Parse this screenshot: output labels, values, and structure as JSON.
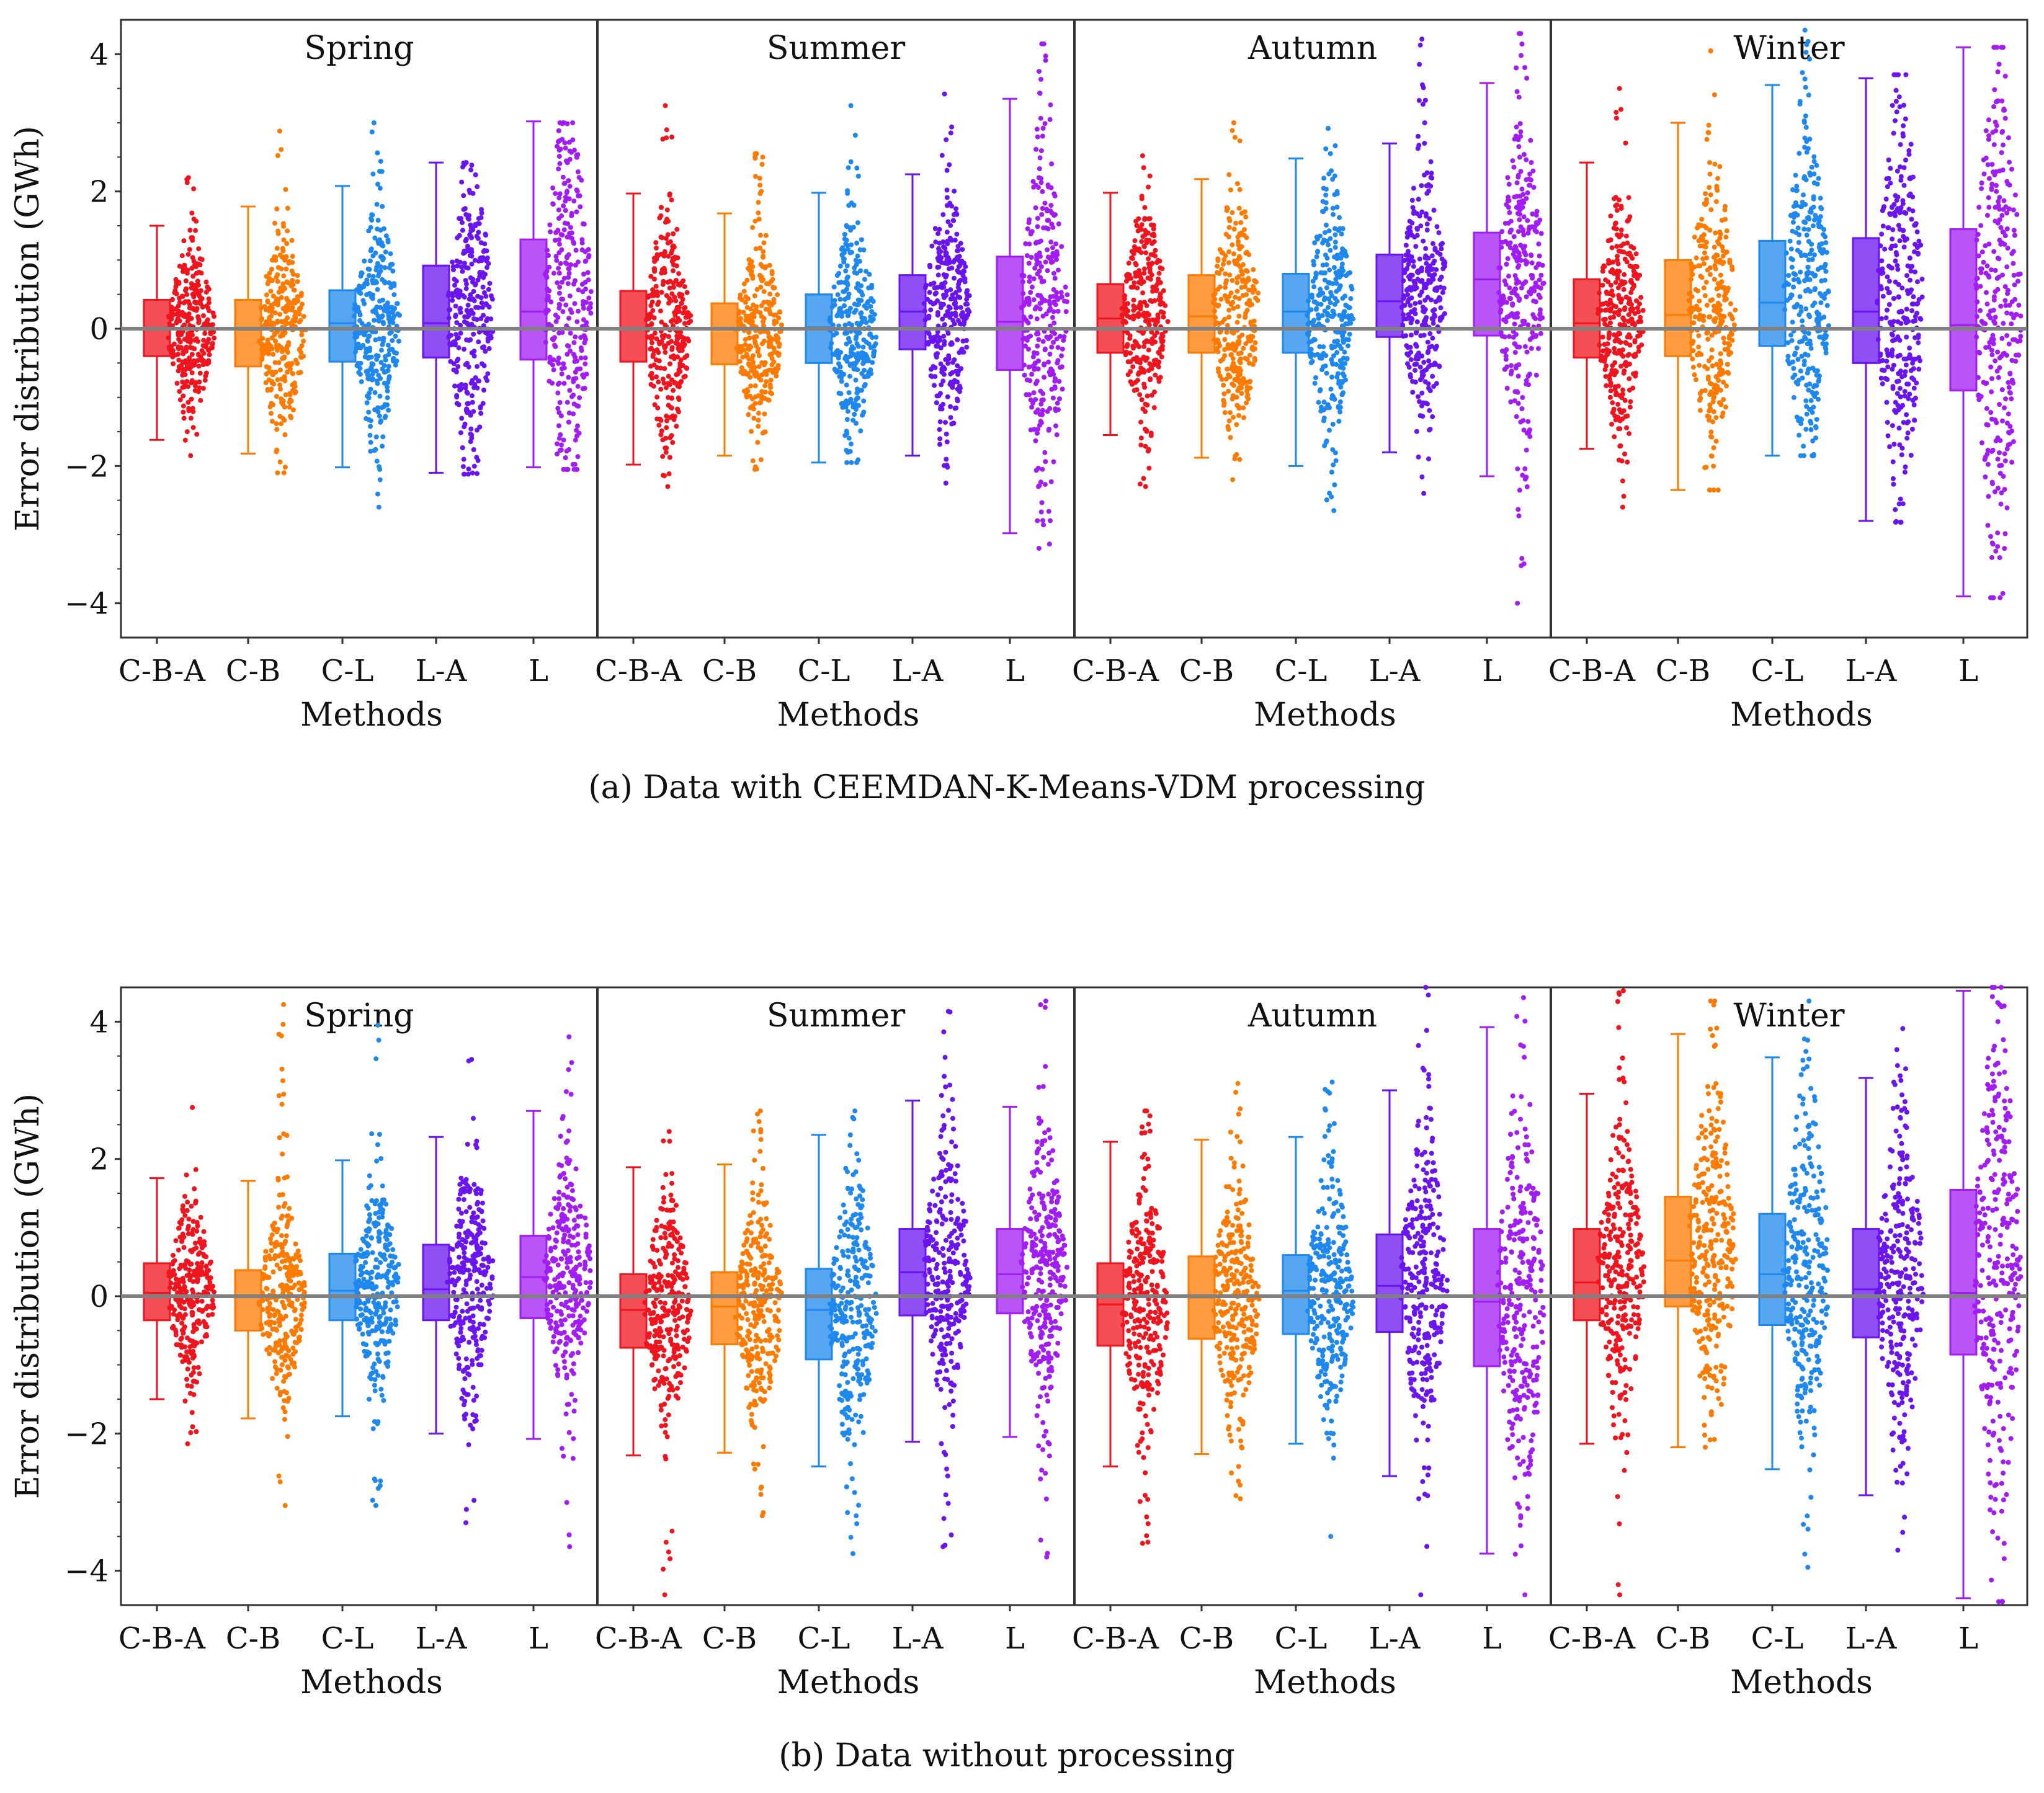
{
  "figure": {
    "caption_a": "(a) Data with CEEMDAN-K-Means-VDM  processing",
    "caption_b": "(b) Data without  processing"
  },
  "colors": {
    "C-B-A": "#f0141e",
    "C-B": "#ff7a00",
    "C-L": "#1e88ee",
    "L-A": "#6a14f0",
    "L": "#a21cf4",
    "frame": "#333333",
    "zero_line": "#808080"
  },
  "chart_data": [
    {
      "type": "boxplot",
      "id": "a",
      "ylabel": "Error distribution (GWh)",
      "xlabel": "Methods",
      "ylim": [
        -4.5,
        4.5
      ],
      "yticks": [
        -4,
        -2,
        0,
        2,
        4
      ],
      "methods": [
        "C-B-A",
        "C-B",
        "C-L",
        "L-A",
        "L"
      ],
      "reference_line": 0,
      "seasons": [
        {
          "name": "Spring",
          "boxes": [
            {
              "method": "C-B-A",
              "whisker_low": -1.62,
              "q1": -0.4,
              "median": 0.0,
              "q3": 0.42,
              "whisker_high": 1.5,
              "points_min": -1.85,
              "points_max": 2.2
            },
            {
              "method": "C-B",
              "whisker_low": -1.82,
              "q1": -0.55,
              "median": -0.02,
              "q3": 0.42,
              "whisker_high": 1.78,
              "points_min": -2.1,
              "points_max": 2.88
            },
            {
              "method": "C-L",
              "whisker_low": -2.02,
              "q1": -0.48,
              "median": 0.08,
              "q3": 0.56,
              "whisker_high": 2.08,
              "points_min": -2.6,
              "points_max": 3.0
            },
            {
              "method": "L-A",
              "whisker_low": -2.1,
              "q1": -0.42,
              "median": 0.08,
              "q3": 0.92,
              "whisker_high": 2.42,
              "points_min": -2.12,
              "points_max": 2.42
            },
            {
              "method": "L",
              "whisker_low": -2.02,
              "q1": -0.45,
              "median": 0.25,
              "q3": 1.3,
              "whisker_high": 3.02,
              "points_min": -2.05,
              "points_max": 3.0
            }
          ]
        },
        {
          "name": "Summer",
          "boxes": [
            {
              "method": "C-B-A",
              "whisker_low": -1.98,
              "q1": -0.48,
              "median": 0.0,
              "q3": 0.55,
              "whisker_high": 1.97,
              "points_min": -2.3,
              "points_max": 3.25
            },
            {
              "method": "C-B",
              "whisker_low": -1.85,
              "q1": -0.52,
              "median": 0.0,
              "q3": 0.37,
              "whisker_high": 1.68,
              "points_min": -2.05,
              "points_max": 2.55
            },
            {
              "method": "C-L",
              "whisker_low": -1.95,
              "q1": -0.5,
              "median": 0.02,
              "q3": 0.5,
              "whisker_high": 1.98,
              "points_min": -1.95,
              "points_max": 3.25
            },
            {
              "method": "L-A",
              "whisker_low": -1.85,
              "q1": -0.3,
              "median": 0.25,
              "q3": 0.78,
              "whisker_high": 2.25,
              "points_min": -2.25,
              "points_max": 3.42
            },
            {
              "method": "L",
              "whisker_low": -2.98,
              "q1": -0.6,
              "median": 0.1,
              "q3": 1.05,
              "whisker_high": 3.35,
              "points_min": -3.2,
              "points_max": 4.15
            }
          ]
        },
        {
          "name": "Autumn",
          "boxes": [
            {
              "method": "C-B-A",
              "whisker_low": -1.55,
              "q1": -0.35,
              "median": 0.15,
              "q3": 0.65,
              "whisker_high": 1.98,
              "points_min": -2.3,
              "points_max": 2.52
            },
            {
              "method": "C-B",
              "whisker_low": -1.88,
              "q1": -0.35,
              "median": 0.18,
              "q3": 0.78,
              "whisker_high": 2.18,
              "points_min": -2.2,
              "points_max": 3.0
            },
            {
              "method": "C-L",
              "whisker_low": -2.0,
              "q1": -0.35,
              "median": 0.25,
              "q3": 0.8,
              "whisker_high": 2.48,
              "points_min": -2.65,
              "points_max": 2.92
            },
            {
              "method": "L-A",
              "whisker_low": -1.8,
              "q1": -0.12,
              "median": 0.4,
              "q3": 1.08,
              "whisker_high": 2.7,
              "points_min": -2.4,
              "points_max": 4.22
            },
            {
              "method": "L",
              "whisker_low": -2.15,
              "q1": -0.1,
              "median": 0.72,
              "q3": 1.4,
              "whisker_high": 3.58,
              "points_min": -4.0,
              "points_max": 4.3
            }
          ]
        },
        {
          "name": "Winter",
          "boxes": [
            {
              "method": "C-B-A",
              "whisker_low": -1.75,
              "q1": -0.42,
              "median": 0.08,
              "q3": 0.72,
              "whisker_high": 2.42,
              "points_min": -2.6,
              "points_max": 3.5
            },
            {
              "method": "C-B",
              "whisker_low": -2.35,
              "q1": -0.4,
              "median": 0.2,
              "q3": 1.0,
              "whisker_high": 3.0,
              "points_min": -2.35,
              "points_max": 4.05
            },
            {
              "method": "C-L",
              "whisker_low": -1.85,
              "q1": -0.25,
              "median": 0.38,
              "q3": 1.28,
              "whisker_high": 3.55,
              "points_min": -1.85,
              "points_max": 4.35
            },
            {
              "method": "L-A",
              "whisker_low": -2.8,
              "q1": -0.5,
              "median": 0.25,
              "q3": 1.32,
              "whisker_high": 3.65,
              "points_min": -2.82,
              "points_max": 3.7
            },
            {
              "method": "L",
              "whisker_low": -3.9,
              "q1": -0.9,
              "median": 0.05,
              "q3": 1.45,
              "whisker_high": 4.1,
              "points_min": -3.92,
              "points_max": 4.1
            }
          ]
        }
      ]
    },
    {
      "type": "boxplot",
      "id": "b",
      "ylabel": "Error distribution (GWh)",
      "xlabel": "Methods",
      "ylim": [
        -4.5,
        4.5
      ],
      "yticks": [
        -4,
        -2,
        0,
        2,
        4
      ],
      "methods": [
        "C-B-A",
        "C-B",
        "C-L",
        "L-A",
        "L"
      ],
      "reference_line": 0,
      "seasons": [
        {
          "name": "Spring",
          "boxes": [
            {
              "method": "C-B-A",
              "whisker_low": -1.5,
              "q1": -0.35,
              "median": 0.05,
              "q3": 0.48,
              "whisker_high": 1.72,
              "points_min": -2.15,
              "points_max": 2.75
            },
            {
              "method": "C-B",
              "whisker_low": -1.78,
              "q1": -0.5,
              "median": 0.0,
              "q3": 0.38,
              "whisker_high": 1.68,
              "points_min": -3.05,
              "points_max": 4.25
            },
            {
              "method": "C-L",
              "whisker_low": -1.75,
              "q1": -0.35,
              "median": 0.08,
              "q3": 0.62,
              "whisker_high": 1.98,
              "points_min": -3.05,
              "points_max": 3.95
            },
            {
              "method": "L-A",
              "whisker_low": -2.0,
              "q1": -0.35,
              "median": 0.1,
              "q3": 0.75,
              "whisker_high": 2.32,
              "points_min": -3.3,
              "points_max": 3.45
            },
            {
              "method": "L",
              "whisker_low": -2.08,
              "q1": -0.32,
              "median": 0.28,
              "q3": 0.88,
              "whisker_high": 2.7,
              "points_min": -3.65,
              "points_max": 3.78
            }
          ]
        },
        {
          "name": "Summer",
          "boxes": [
            {
              "method": "C-B-A",
              "whisker_low": -2.32,
              "q1": -0.75,
              "median": -0.2,
              "q3": 0.32,
              "whisker_high": 1.88,
              "points_min": -4.35,
              "points_max": 2.4
            },
            {
              "method": "C-B",
              "whisker_low": -2.28,
              "q1": -0.7,
              "median": -0.15,
              "q3": 0.35,
              "whisker_high": 1.92,
              "points_min": -3.2,
              "points_max": 2.7
            },
            {
              "method": "C-L",
              "whisker_low": -2.48,
              "q1": -0.92,
              "median": -0.2,
              "q3": 0.4,
              "whisker_high": 2.35,
              "points_min": -3.75,
              "points_max": 2.7
            },
            {
              "method": "L-A",
              "whisker_low": -2.12,
              "q1": -0.28,
              "median": 0.35,
              "q3": 0.98,
              "whisker_high": 2.85,
              "points_min": -3.65,
              "points_max": 4.15
            },
            {
              "method": "L",
              "whisker_low": -2.05,
              "q1": -0.25,
              "median": 0.32,
              "q3": 0.98,
              "whisker_high": 2.76,
              "points_min": -3.8,
              "points_max": 4.3
            }
          ]
        },
        {
          "name": "Autumn",
          "boxes": [
            {
              "method": "C-B-A",
              "whisker_low": -2.48,
              "q1": -0.72,
              "median": -0.12,
              "q3": 0.48,
              "whisker_high": 2.25,
              "points_min": -3.6,
              "points_max": 2.7
            },
            {
              "method": "C-B",
              "whisker_low": -2.3,
              "q1": -0.62,
              "median": -0.02,
              "q3": 0.58,
              "whisker_high": 2.28,
              "points_min": -2.95,
              "points_max": 3.1
            },
            {
              "method": "C-L",
              "whisker_low": -2.15,
              "q1": -0.55,
              "median": 0.08,
              "q3": 0.6,
              "whisker_high": 2.32,
              "points_min": -3.5,
              "points_max": 3.12
            },
            {
              "method": "L-A",
              "whisker_low": -2.62,
              "q1": -0.52,
              "median": 0.15,
              "q3": 0.9,
              "whisker_high": 3.0,
              "points_min": -4.35,
              "points_max": 4.5
            },
            {
              "method": "L",
              "whisker_low": -3.75,
              "q1": -1.02,
              "median": -0.08,
              "q3": 0.98,
              "whisker_high": 3.92,
              "points_min": -4.35,
              "points_max": 4.35
            }
          ]
        },
        {
          "name": "Winter",
          "boxes": [
            {
              "method": "C-B-A",
              "whisker_low": -2.15,
              "q1": -0.35,
              "median": 0.2,
              "q3": 0.98,
              "whisker_high": 2.95,
              "points_min": -4.35,
              "points_max": 4.45
            },
            {
              "method": "C-B",
              "whisker_low": -2.2,
              "q1": -0.15,
              "median": 0.52,
              "q3": 1.45,
              "whisker_high": 3.82,
              "points_min": -2.2,
              "points_max": 4.3
            },
            {
              "method": "C-L",
              "whisker_low": -2.52,
              "q1": -0.42,
              "median": 0.32,
              "q3": 1.2,
              "whisker_high": 3.48,
              "points_min": -3.95,
              "points_max": 4.3
            },
            {
              "method": "L-A",
              "whisker_low": -2.9,
              "q1": -0.6,
              "median": 0.1,
              "q3": 0.98,
              "whisker_high": 3.18,
              "points_min": -3.7,
              "points_max": 3.9
            },
            {
              "method": "L",
              "whisker_low": -4.4,
              "q1": -0.85,
              "median": 0.05,
              "q3": 1.55,
              "whisker_high": 4.45,
              "points_min": -4.45,
              "points_max": 4.5
            }
          ]
        }
      ]
    }
  ]
}
